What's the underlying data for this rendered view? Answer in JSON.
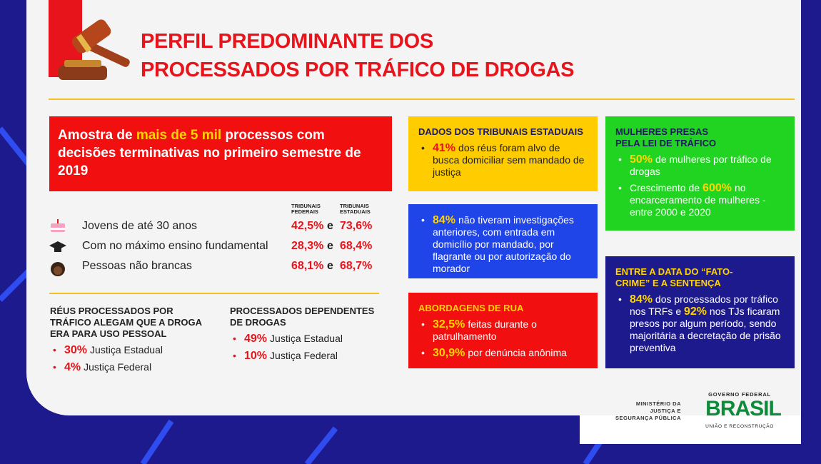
{
  "header": {
    "title": [
      "PERFIL PREDOMINANTE DOS",
      "PROCESSADOS POR TRÁFICO DE DROGAS"
    ]
  },
  "sample": {
    "parts": [
      "Amostra de ",
      "mais de 5 mil",
      " processos com decisões terminativas no primeiro semestre de 2019"
    ]
  },
  "profile": {
    "columns": [
      "TRIBUNAIS FEDERAIS",
      "TRIBUNAIS ESTADUAIS"
    ],
    "connector": "e",
    "rows": [
      {
        "label": "Jovens de até 30 anos",
        "federal": "42,5%",
        "estadual": "73,6%"
      },
      {
        "label": "Com no máximo ensino fundamental",
        "federal": "28,3%",
        "estadual": "68,4%"
      },
      {
        "label": "Pessoas não brancas",
        "federal": "68,1%",
        "estadual": "68,7%"
      }
    ]
  },
  "personal_use": {
    "title": "RÉUS PROCESSADOS POR TRÁFICO ALEGAM QUE A DROGA ERA PARA USO PESSOAL",
    "items": [
      {
        "value": "30%",
        "text": "Justiça Estadual"
      },
      {
        "value": "4%",
        "text": "Justiça Federal"
      }
    ]
  },
  "dependents": {
    "title": "PROCESSADOS DEPENDENTES DE DROGAS",
    "items": [
      {
        "value": "49%",
        "text": "Justiça Estadual"
      },
      {
        "value": "10%",
        "text": "Justiça Federal"
      }
    ]
  },
  "state_courts": {
    "title": "DADOS DOS TRIBUNAIS ESTADUAIS",
    "items": [
      {
        "value": "41%",
        "text": "dos réus foram alvo de busca domiciliar sem mandado de justiça"
      }
    ]
  },
  "investigations": {
    "items": [
      {
        "value": "84%",
        "text": "não tiveram investigações anteriores, com entrada em domicílio por mandado, por flagrante ou por autorização do morador"
      }
    ]
  },
  "street": {
    "title": "ABORDAGENS DE RUA",
    "items": [
      {
        "value": "32,5%",
        "text": "feitas durante o patrulhamento"
      },
      {
        "value": "30,9%",
        "text": "por denúncia anônima"
      }
    ]
  },
  "women": {
    "title": "MULHERES PRESAS PELA LEI DE TRÁFICO",
    "items": [
      {
        "value": "50%",
        "text": "de mulheres por tráfico de drogas"
      },
      {
        "before": "Crescimento de",
        "value": "600%",
        "text": "no encarceramento de mulheres - entre 2000 e 2020"
      }
    ]
  },
  "sentence": {
    "title": "ENTRE A DATA DO “FATO-CRIME” E A SENTENÇA",
    "parts": [
      "84%",
      " dos processados por tráfico nos TRFs e ",
      "92%",
      " nos TJs ficaram presos por algum período, sendo majoritária a decretação de prisão preventiva"
    ]
  },
  "footer": {
    "ministry": [
      "MINISTÉRIO DA",
      "JUSTIÇA E",
      "SEGURANÇA PÚBLICA"
    ],
    "government": "GOVERNO FEDERAL",
    "brand": "BRASIL",
    "slogan": "UNIÃO E RECONSTRUÇÃO"
  }
}
